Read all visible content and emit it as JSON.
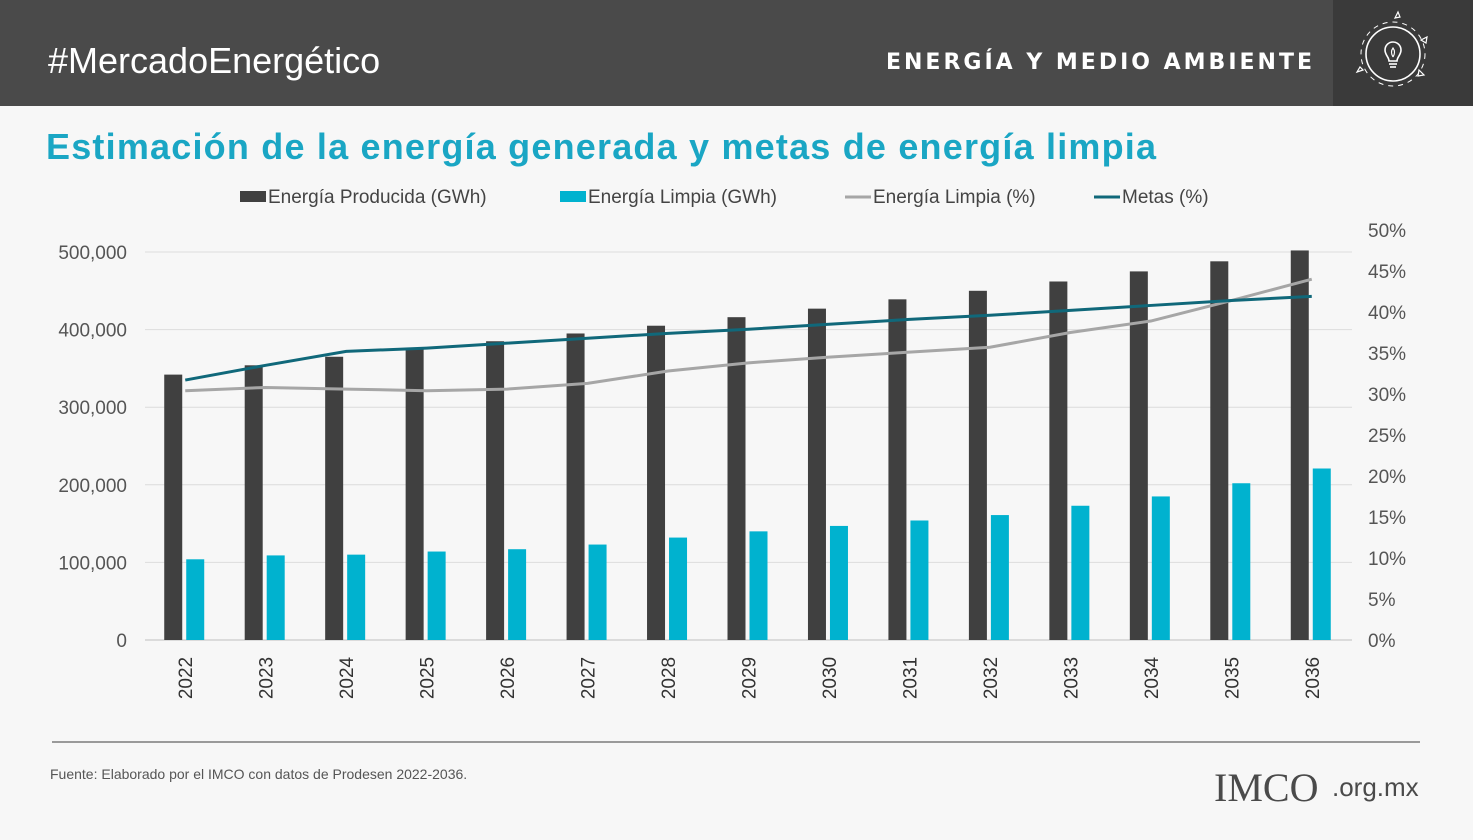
{
  "header": {
    "hashtag": "#MercadoEnergético",
    "section": "ENERGÍA Y MEDIO AMBIENTE",
    "icon": "lightbulb-leaf-icon"
  },
  "colors": {
    "header_bg": "#4a4a4a",
    "title": "#1aa6c4",
    "produced": "#404040",
    "clean": "#00b2cf",
    "clean_pct": "#a6a6a6",
    "goals": "#10687a"
  },
  "chart_data": {
    "type": "bar",
    "title": "Estimación de la energía generada y metas de energía limpia",
    "categories": [
      "2022",
      "2023",
      "2024",
      "2025",
      "2026",
      "2027",
      "2028",
      "2029",
      "2030",
      "2031",
      "2032",
      "2033",
      "2034",
      "2035",
      "2036"
    ],
    "series": [
      {
        "name": "Energía Producida (GWh)",
        "type": "bar",
        "axis": "left",
        "values": [
          342000,
          354000,
          365000,
          375000,
          385000,
          395000,
          405000,
          416000,
          427000,
          439000,
          450000,
          462000,
          475000,
          488000,
          502000
        ]
      },
      {
        "name": "Energía Limpia (GWh)",
        "type": "bar",
        "axis": "left",
        "values": [
          104000,
          109000,
          110000,
          114000,
          117000,
          123000,
          132000,
          140000,
          147000,
          154000,
          161000,
          173000,
          185000,
          202000,
          221000
        ]
      },
      {
        "name": "Energía Limpia (%)",
        "type": "line",
        "axis": "right",
        "values": [
          30.4,
          30.8,
          30.6,
          30.4,
          30.6,
          31.3,
          32.8,
          33.8,
          34.5,
          35.1,
          35.7,
          37.5,
          38.9,
          41.4,
          44.0
        ]
      },
      {
        "name": "Metas (%)",
        "type": "line",
        "axis": "right",
        "values": [
          31.7,
          33.5,
          35.2,
          35.6,
          36.2,
          36.8,
          37.4,
          37.9,
          38.5,
          39.1,
          39.6,
          40.2,
          40.8,
          41.4,
          41.9
        ]
      }
    ],
    "left_axis": {
      "ylim": [
        0,
        500000
      ],
      "ticks": [
        "0",
        "100,000",
        "200,000",
        "300,000",
        "400,000",
        "500,000"
      ],
      "tick_values": [
        0,
        100000,
        200000,
        300000,
        400000,
        500000
      ]
    },
    "right_axis": {
      "ylim": [
        0,
        50
      ],
      "ticks": [
        "0%",
        "5%",
        "10%",
        "15%",
        "20%",
        "25%",
        "30%",
        "35%",
        "40%",
        "45%",
        "50%"
      ],
      "tick_values": [
        0,
        5,
        10,
        15,
        20,
        25,
        30,
        35,
        40,
        45,
        50
      ]
    },
    "grid": true,
    "legend_position": "top"
  },
  "footer": {
    "source": "Fuente:  Elaborado por el IMCO con datos de Prodesen 2022-2036.",
    "logo_imc": "IMCO",
    "logo_domain": ".org.mx"
  }
}
